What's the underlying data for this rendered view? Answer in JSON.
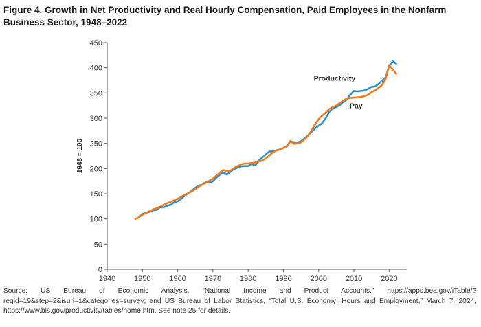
{
  "chart_data": {
    "type": "line",
    "title": "Figure 4. Growth in Net Productivity and Real Hourly Compensation, Paid Employees in the Nonfarm Business Sector, 1948–2022",
    "xlabel": "",
    "ylabel": "1948 = 100",
    "xlim": [
      1940,
      2025
    ],
    "ylim": [
      0,
      450
    ],
    "x_ticks": [
      1940,
      1950,
      1960,
      1970,
      1980,
      1990,
      2000,
      2010,
      2020
    ],
    "y_ticks": [
      0,
      50,
      100,
      150,
      200,
      250,
      300,
      350,
      400,
      450
    ],
    "grid": false,
    "legend": "none",
    "series": [
      {
        "name": "Productivity",
        "color": "#2b8fd1",
        "x": [
          1948,
          1949,
          1950,
          1951,
          1952,
          1953,
          1954,
          1955,
          1956,
          1957,
          1958,
          1959,
          1960,
          1961,
          1962,
          1963,
          1964,
          1965,
          1966,
          1967,
          1968,
          1969,
          1970,
          1971,
          1972,
          1973,
          1974,
          1975,
          1976,
          1977,
          1978,
          1979,
          1980,
          1981,
          1982,
          1983,
          1984,
          1985,
          1986,
          1987,
          1988,
          1989,
          1990,
          1991,
          1992,
          1993,
          1994,
          1995,
          1996,
          1997,
          1998,
          1999,
          2000,
          2001,
          2002,
          2003,
          2004,
          2005,
          2006,
          2007,
          2008,
          2009,
          2010,
          2011,
          2012,
          2013,
          2014,
          2015,
          2016,
          2017,
          2018,
          2019,
          2020,
          2021,
          2022
        ],
        "y": [
          100,
          103,
          110,
          112,
          114,
          117,
          118,
          123,
          123,
          126,
          128,
          133,
          135,
          140,
          146,
          151,
          156,
          162,
          166,
          168,
          173,
          172,
          175,
          182,
          188,
          192,
          188,
          194,
          199,
          202,
          204,
          205,
          205,
          209,
          206,
          216,
          222,
          228,
          234,
          234,
          236,
          238,
          241,
          245,
          254,
          252,
          252,
          254,
          260,
          266,
          273,
          280,
          285,
          290,
          300,
          312,
          320,
          322,
          326,
          332,
          337,
          347,
          354,
          353,
          354,
          355,
          358,
          362,
          363,
          368,
          374,
          381,
          404,
          413,
          408
        ]
      },
      {
        "name": "Pay",
        "color": "#f07a1a",
        "x": [
          1948,
          1949,
          1950,
          1951,
          1952,
          1953,
          1954,
          1955,
          1956,
          1957,
          1958,
          1959,
          1960,
          1961,
          1962,
          1963,
          1964,
          1965,
          1966,
          1967,
          1968,
          1969,
          1970,
          1971,
          1972,
          1973,
          1974,
          1975,
          1976,
          1977,
          1978,
          1979,
          1980,
          1981,
          1982,
          1983,
          1984,
          1985,
          1986,
          1987,
          1988,
          1989,
          1990,
          1991,
          1992,
          1993,
          1994,
          1995,
          1996,
          1997,
          1998,
          1999,
          2000,
          2001,
          2002,
          2003,
          2004,
          2005,
          2006,
          2007,
          2008,
          2009,
          2010,
          2011,
          2012,
          2013,
          2014,
          2015,
          2016,
          2017,
          2018,
          2019,
          2020,
          2021,
          2022
        ],
        "y": [
          100,
          103,
          108,
          112,
          115,
          119,
          121,
          124,
          128,
          131,
          134,
          137,
          140,
          144,
          148,
          151,
          155,
          159,
          164,
          168,
          172,
          176,
          180,
          186,
          192,
          197,
          195,
          196,
          201,
          205,
          208,
          210,
          210,
          211,
          212,
          214,
          216,
          220,
          226,
          232,
          236,
          238,
          241,
          244,
          255,
          249,
          250,
          252,
          258,
          265,
          276,
          288,
          298,
          305,
          311,
          318,
          322,
          325,
          330,
          335,
          339,
          340,
          341,
          341,
          342,
          344,
          346,
          352,
          355,
          360,
          366,
          378,
          405,
          397,
          388
        ]
      }
    ],
    "annotations": [
      {
        "text": "Productivity",
        "x": 1998.6,
        "y": 374
      },
      {
        "text": "Pay",
        "x": 2008.8,
        "y": 320
      }
    ]
  },
  "source_note": "Source: US Bureau of Economic Analysis, “National Income and Product Accounts,” https://apps.bea.gov/iTable/?reqid=19&step=2&isuri=1&categories=survey; and US Bureau of Labor Statistics, “Total U.S. Economy: Hours and Employment,” March 7, 2024, https://www.bls.gov/productivity/tables/home.htm. See note 25 for details."
}
